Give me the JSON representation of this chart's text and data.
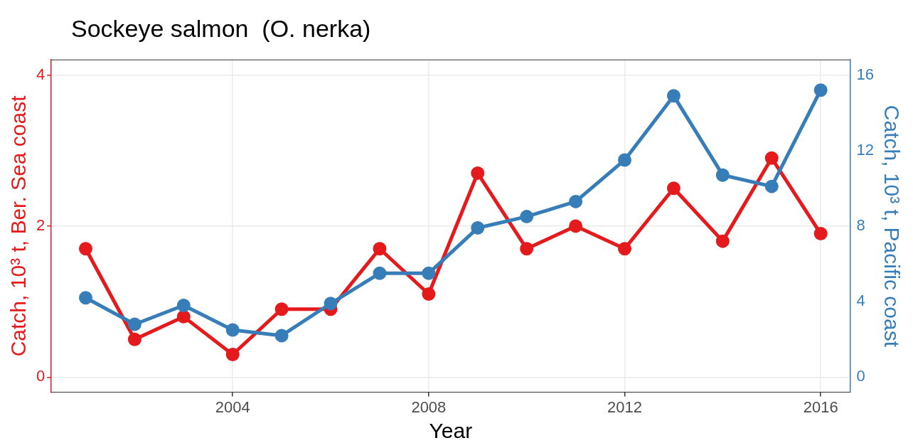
{
  "chart_data": {
    "type": "line",
    "title": "Sockeye salmon  (O. nerka)",
    "xlabel": "Year",
    "ylabel": "Catch, 10³ t, Ber. Sea coast",
    "y2label": "Catch, 10³ t, Pacific coast",
    "x": [
      2001,
      2002,
      2003,
      2004,
      2005,
      2006,
      2007,
      2008,
      2009,
      2010,
      2011,
      2012,
      2013,
      2014,
      2015,
      2016
    ],
    "series": [
      {
        "color": "#e41a1c",
        "values": [
          1.7,
          0.5,
          0.8,
          0.3,
          0.9,
          0.9,
          1.7,
          1.1,
          2.7,
          1.7,
          2.0,
          1.7,
          2.5,
          1.8,
          2.9,
          1.9
        ]
      },
      {
        "color": "#377eb8",
        "axis": "y2",
        "values": [
          4.2,
          2.8,
          3.8,
          2.5,
          2.2,
          3.9,
          5.5,
          5.5,
          7.9,
          8.5,
          9.3,
          11.5,
          14.9,
          10.7,
          10.1,
          15.2
        ]
      }
    ],
    "xlim": [
      2000.3,
      2016.6
    ],
    "xticks": [
      2004,
      2008,
      2012,
      2016
    ],
    "ylim": [
      -0.2,
      4.2
    ],
    "yticks": [
      0,
      2,
      4
    ],
    "y2lim": [
      -0.8,
      16.8
    ],
    "y2ticks": [
      0,
      4,
      8,
      12,
      16
    ],
    "grid": true,
    "legend": false,
    "marker": "circle",
    "line_style": "solid"
  }
}
